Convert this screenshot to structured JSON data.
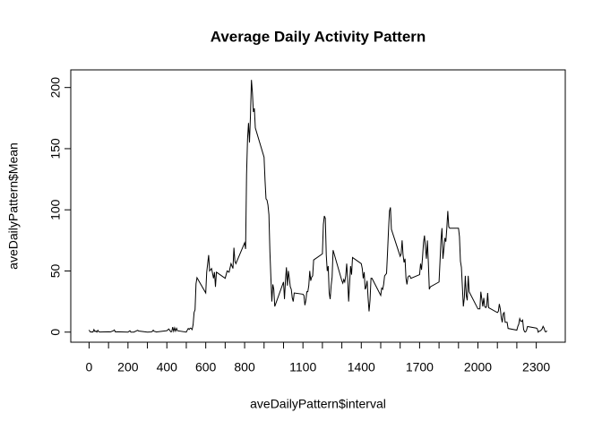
{
  "chart_data": {
    "type": "line",
    "title": "Average Daily Activity Pattern",
    "x_label": "aveDailyPattern$interval",
    "y_label": "aveDailyPattern$Mean",
    "x": [
      0,
      5,
      10,
      15,
      20,
      25,
      30,
      35,
      40,
      45,
      50,
      55,
      100,
      110,
      125,
      130,
      135,
      150,
      200,
      210,
      215,
      230,
      250,
      255,
      300,
      320,
      325,
      330,
      335,
      340,
      345,
      400,
      410,
      420,
      425,
      430,
      435,
      440,
      445,
      450,
      455,
      500,
      505,
      510,
      515,
      520,
      525,
      530,
      535,
      540,
      545,
      550,
      555,
      600,
      605,
      615,
      620,
      630,
      640,
      645,
      650,
      655,
      700,
      710,
      720,
      730,
      740,
      745,
      750,
      755,
      800,
      805,
      810,
      815,
      820,
      825,
      830,
      835,
      840,
      845,
      850,
      855,
      900,
      905,
      910,
      915,
      920,
      925,
      930,
      935,
      940,
      945,
      950,
      955,
      1000,
      1005,
      1010,
      1015,
      1020,
      1025,
      1030,
      1035,
      1040,
      1045,
      1050,
      1055,
      1100,
      1105,
      1110,
      1115,
      1120,
      1125,
      1130,
      1135,
      1140,
      1145,
      1150,
      1155,
      1200,
      1205,
      1210,
      1215,
      1220,
      1225,
      1230,
      1235,
      1240,
      1245,
      1250,
      1255,
      1300,
      1305,
      1310,
      1315,
      1320,
      1325,
      1330,
      1335,
      1340,
      1345,
      1350,
      1355,
      1400,
      1405,
      1410,
      1415,
      1420,
      1425,
      1430,
      1435,
      1440,
      1445,
      1450,
      1455,
      1500,
      1505,
      1510,
      1515,
      1520,
      1525,
      1530,
      1535,
      1540,
      1545,
      1550,
      1555,
      1600,
      1605,
      1610,
      1615,
      1620,
      1625,
      1630,
      1635,
      1640,
      1645,
      1650,
      1655,
      1700,
      1705,
      1710,
      1715,
      1720,
      1725,
      1730,
      1735,
      1740,
      1745,
      1750,
      1755,
      1800,
      1805,
      1810,
      1815,
      1820,
      1825,
      1830,
      1835,
      1840,
      1845,
      1850,
      1855,
      1900,
      1905,
      1910,
      1915,
      1920,
      1925,
      1930,
      1935,
      1940,
      1945,
      1950,
      1955,
      2000,
      2005,
      2010,
      2015,
      2020,
      2025,
      2030,
      2035,
      2040,
      2045,
      2050,
      2055,
      2100,
      2105,
      2110,
      2115,
      2120,
      2125,
      2130,
      2135,
      2140,
      2145,
      2150,
      2155,
      2200,
      2205,
      2210,
      2215,
      2220,
      2225,
      2230,
      2235,
      2240,
      2245,
      2250,
      2255,
      2300,
      2305,
      2310,
      2315,
      2320,
      2325,
      2330,
      2335,
      2340,
      2345,
      2350,
      2355
    ],
    "series": [
      {
        "name": "aveDailyPattern$Mean",
        "color": "#000000",
        "values": [
          1.7,
          0.3,
          0.1,
          0.2,
          0.1,
          2.1,
          0.5,
          0.9,
          0,
          1.5,
          0.3,
          0.1,
          0.3,
          0.2,
          1.1,
          1.8,
          0.2,
          0.3,
          0,
          1.1,
          0,
          0,
          1.5,
          0.9,
          0,
          0.2,
          0.6,
          1.6,
          0.6,
          0.5,
          0.1,
          1.2,
          2.6,
          0.3,
          0.4,
          4.1,
          0.7,
          3.5,
          0.8,
          3.1,
          1.1,
          0,
          1.6,
          3,
          2.2,
          3.3,
          3,
          2.1,
          6.1,
          16,
          18.3,
          39.5,
          44.5,
          32,
          49,
          63,
          50,
          52,
          44,
          49,
          37,
          49,
          44,
          50,
          49,
          56,
          52,
          69,
          58,
          56,
          73,
          68,
          129,
          158,
          171,
          155,
          177,
          206.2,
          196,
          180,
          183,
          167,
          143,
          124,
          109,
          108,
          104,
          96,
          66,
          45,
          25,
          39,
          35,
          21,
          41,
          27,
          42,
          53,
          38,
          50,
          44,
          37,
          35,
          28,
          25,
          32,
          31,
          30,
          22,
          26,
          33,
          33,
          38,
          50,
          42,
          45,
          46,
          59,
          64,
          88,
          95,
          93,
          63,
          50,
          54,
          32,
          27,
          38,
          45,
          67,
          42,
          40,
          43,
          41,
          46,
          56,
          43,
          25,
          40,
          54,
          47,
          61,
          56,
          52,
          44,
          49,
          35,
          37,
          42,
          28,
          17,
          26,
          44,
          44,
          30,
          36,
          35,
          39,
          46,
          47,
          48,
          65,
          83,
          99,
          102,
          84,
          62,
          64,
          75,
          63,
          57,
          60,
          44,
          39,
          45,
          46,
          46,
          44,
          47,
          56,
          51,
          61,
          73,
          79,
          69,
          60,
          75,
          57,
          35,
          37,
          41,
          58,
          75,
          85,
          60,
          68,
          77,
          74,
          85,
          99,
          86,
          85,
          85,
          78,
          58,
          53,
          37,
          21,
          28,
          46,
          30,
          26,
          46,
          33,
          19,
          19,
          19,
          33,
          27,
          21,
          28,
          21,
          20,
          21,
          32,
          20,
          16,
          17,
          23,
          19,
          12,
          8,
          15,
          16,
          8,
          8,
          8,
          3,
          1.6,
          4.6,
          6.5,
          11,
          9,
          8.7,
          9.8,
          2.2,
          0.3,
          0.1,
          1.6,
          4.6,
          3.3,
          2.8,
          0,
          0.8,
          1,
          1.6,
          2.6,
          4.7,
          3.3,
          0.6,
          0.2,
          1.1
        ]
      }
    ],
    "xlim": [
      -94.2,
      2449.2
    ],
    "ylim": [
      -8.25,
      214.42
    ],
    "xticks": [
      0,
      {
        "value": 100,
        "label": null
      },
      200,
      {
        "value": 300,
        "label": null
      },
      400,
      {
        "value": 500,
        "label": null
      },
      600,
      {
        "value": 700,
        "label": null
      },
      800,
      {
        "value": 900,
        "label": null
      },
      {
        "value": 1000,
        "label": null
      },
      1100,
      {
        "value": 1200,
        "label": null
      },
      {
        "value": 1300,
        "label": null
      },
      1400,
      {
        "value": 1500,
        "label": null
      },
      {
        "value": 1600,
        "label": null
      },
      1700,
      {
        "value": 1800,
        "label": null
      },
      {
        "value": 1900,
        "label": null
      },
      2000,
      {
        "value": 2100,
        "label": null
      },
      {
        "value": 2200,
        "label": null
      },
      2300
    ],
    "yticks": [
      0,
      50,
      100,
      150,
      200
    ]
  }
}
